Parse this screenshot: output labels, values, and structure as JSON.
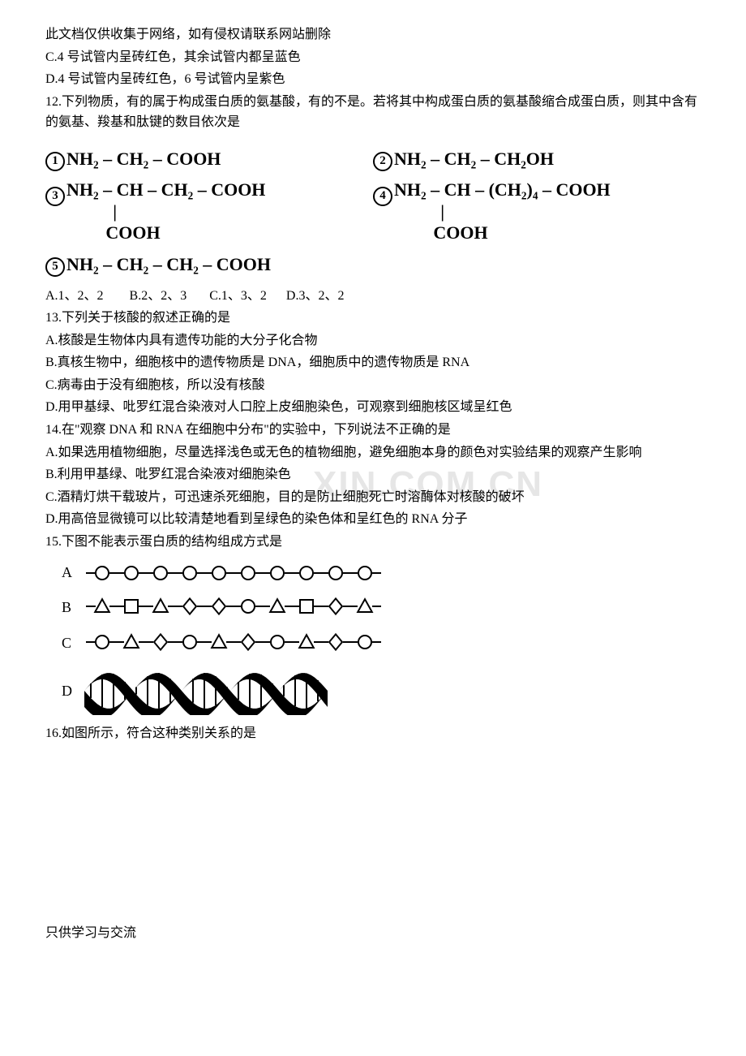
{
  "header_note": "此文档仅供收集于网络，如有侵权请联系网站删除",
  "q11_optC": "C.4 号试管内呈砖红色，其余试管内都呈蓝色",
  "q11_optD": "D.4 号试管内呈砖红色，6 号试管内呈紫色",
  "q12_stem": "12.下列物质，有的属于构成蛋白质的氨基酸，有的不是。若将其中构成蛋白质的氨基酸缩合成蛋白质，则其中含有的氨基、羧基和肽键的数目依次是",
  "formulas": {
    "f1": "NH₂ – CH₂ – COOH",
    "f2": "NH₂ – CH₂ – CH₂OH",
    "f3_top": "NH₂ – CH – CH₂ – COOH",
    "f3_bar": "|",
    "f3_bot": "COOH",
    "f4_top": "NH₂ – CH – (CH₂)₄ – COOH",
    "f4_bar": "|",
    "f4_bot": "COOH",
    "f5": "NH₂ – CH₂ – CH₂ – COOH",
    "circ1": "1",
    "circ2": "2",
    "circ3": "3",
    "circ4": "4",
    "circ5": "5"
  },
  "q12_opts": "A.1、2、2        B.2、2、3       C.1、3、2      D.3、2、2",
  "q13_stem": "13.下列关于核酸的叙述正确的是",
  "q13_A": "A.核酸是生物体内具有遗传功能的大分子化合物",
  "q13_B": "B.真核生物中，细胞核中的遗传物质是 DNA，细胞质中的遗传物质是 RNA",
  "q13_C": "C.病毒由于没有细胞核，所以没有核酸",
  "q13_D": "D.用甲基绿、吡罗红混合染液对人口腔上皮细胞染色，可观察到细胞核区域呈红色",
  "q14_stem": "14.在\"观察 DNA 和 RNA 在细胞中分布\"的实验中，下列说法不正确的是",
  "q14_A": "A.如果选用植物细胞，尽量选择浅色或无色的植物细胞，避免细胞本身的颜色对实验结果的观察产生影响",
  "q14_B": "B.利用甲基绿、吡罗红混合染液对细胞染色",
  "q14_C": "C.酒精灯烘干载玻片，可迅速杀死细胞，目的是防止细胞死亡时溶酶体对核酸的破坏",
  "q14_D": "D.用高倍显微镜可以比较清楚地看到呈绿色的染色体和呈红色的 RNA 分子",
  "q15_stem": "15.下图不能表示蛋白质的结构组成方式是",
  "chain_labels": {
    "a": "A",
    "b": "B",
    "c": "C",
    "d": "D"
  },
  "q16_stem": "16.如图所示，符合这种类别关系的是",
  "watermark_text": "XIN.COM.CN",
  "footer_note": "只供学习与交流",
  "svg": {
    "stroke": "#000000",
    "stroke_width": 2,
    "rowA": {
      "count": 10,
      "shape": "circle"
    },
    "rowB": {
      "shapes": [
        "tri",
        "sq",
        "tri",
        "diam",
        "diam",
        "circ",
        "tri",
        "sq",
        "diam",
        "tri"
      ]
    },
    "rowC": {
      "shapes": [
        "circ",
        "tri",
        "diam",
        "circ",
        "tri",
        "diam",
        "circ",
        "tri",
        "diam",
        "circ"
      ]
    },
    "helix": {
      "segments": 5
    }
  }
}
